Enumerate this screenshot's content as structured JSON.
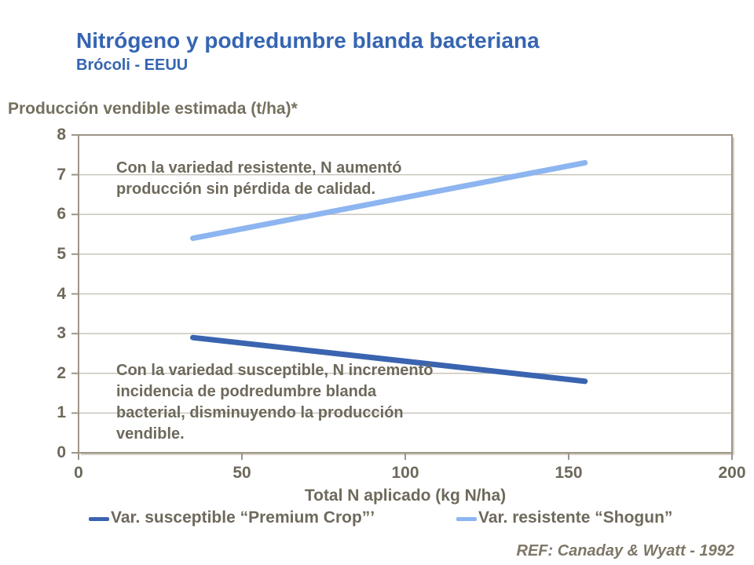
{
  "header": {
    "title": "Nitrógeno y podredumbre blanda bacteriana",
    "subtitle": "Brócoli - EEUU"
  },
  "footer": {
    "ref": "REF: Canaday & Wyatt - 1992"
  },
  "colors": {
    "title_blue": "#3565B1",
    "text": "#6E695B",
    "grid": "#C9C5BC",
    "axis": "#9D9588",
    "plot_shadow": "#D5D1C7",
    "susceptible_line": "#3A64B0",
    "resistant_line": "#8DB5F0"
  },
  "chart_data": {
    "type": "line",
    "title": "Producción vendible estimada (t/ha)*",
    "ylabel": "Producción vendible estimada (t/ha)*",
    "xlabel": "Total N aplicado (kg N/ha)",
    "x": [
      35,
      155
    ],
    "series": [
      {
        "key": "susceptible",
        "name": "Var. susceptible “Premium Crop”’",
        "values": [
          2.9,
          1.8
        ],
        "color": "#3A64B0"
      },
      {
        "key": "resistente",
        "name": "Var. resistente “Shogun”",
        "values": [
          5.4,
          7.3
        ],
        "color": "#8DB5F0"
      }
    ],
    "xlim": [
      0,
      200
    ],
    "ylim": [
      0,
      8
    ],
    "xticks": [
      0,
      50,
      100,
      150,
      200
    ],
    "yticks": [
      0,
      1,
      2,
      3,
      4,
      5,
      6,
      7,
      8
    ],
    "grid": "horizontal",
    "legend_position": "bottom",
    "annotations": [
      {
        "lines": [
          "Con la variedad resistente, N aumentó",
          "producción sin pérdida de calidad."
        ]
      },
      {
        "lines": [
          "Con la variedad susceptible, N incrementó",
          "incidencia de podredumbre blanda",
          "bacterial, disminuyendo la producción",
          "vendible."
        ]
      }
    ]
  }
}
